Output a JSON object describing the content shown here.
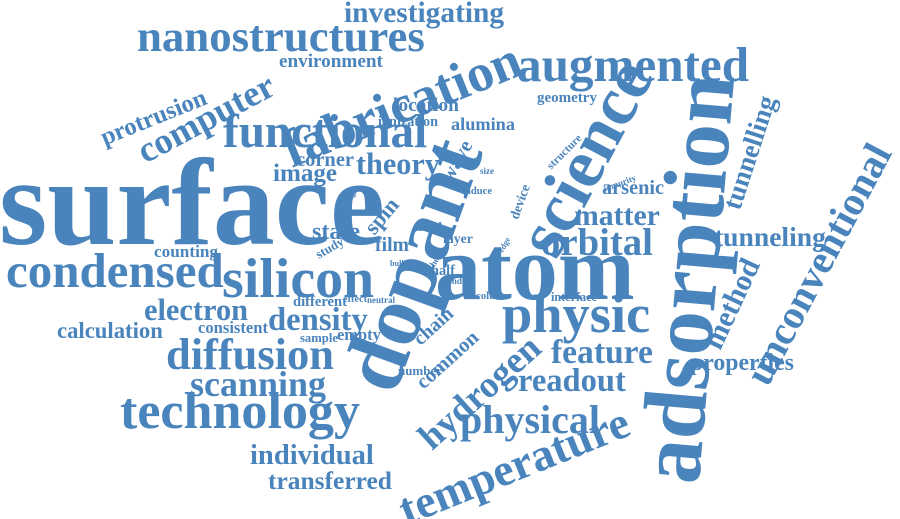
{
  "colors": {
    "word": "#4a84bc",
    "background": "#ffffff"
  },
  "words": [
    "surface",
    "dopant",
    "adsorption",
    "atom",
    "silicon",
    "science",
    "fabrication",
    "augmented",
    "nanostructures",
    "functional",
    "physic",
    "condensed",
    "hydrogen",
    "temperature",
    "technology",
    "computer",
    "diffusion",
    "density",
    "scanning",
    "orbital",
    "unconventional",
    "electron",
    "physical",
    "readout",
    "feature",
    "method",
    "tunneling",
    "tunnelling",
    "investigating",
    "matter",
    "theory",
    "individual",
    "transferred",
    "calculation",
    "properties",
    "protrusion",
    "common",
    "image",
    "location",
    "geometry",
    "arsenic",
    "state",
    "film",
    "environment",
    "alumina",
    "corner",
    "spin",
    "wave",
    "counting",
    "consistent",
    "ionization",
    "chain",
    "empty",
    "sample",
    "different",
    "layer",
    "filled",
    "study",
    "structure",
    "impurity",
    "device",
    "induce",
    "number",
    "interface",
    "column",
    "effect",
    "neutral",
    "half",
    "bond",
    "origin",
    "edge",
    "bulk",
    "size",
    "the"
  ]
}
